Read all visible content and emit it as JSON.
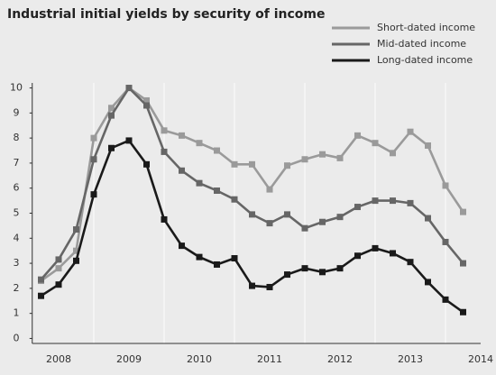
{
  "chart_data": {
    "type": "line",
    "title": "Industrial initial yields by security of income",
    "x": [
      2008.25,
      2008.5,
      2008.75,
      2009,
      2009.25,
      2009.5,
      2009.75,
      2010,
      2010.25,
      2010.5,
      2010.75,
      2011,
      2011.25,
      2011.5,
      2011.75,
      2012,
      2012.25,
      2012.5,
      2012.75,
      2013,
      2013.25,
      2013.5,
      2013.75,
      2014,
      2014.25
    ],
    "series": [
      {
        "name": "Short-dated income",
        "color": "#9a9a9a",
        "values": [
          2.3,
          2.8,
          3.5,
          8.0,
          9.2,
          10.0,
          9.5,
          8.3,
          8.1,
          7.8,
          7.5,
          6.95,
          6.95,
          5.95,
          6.9,
          7.15,
          7.35,
          7.2,
          8.1,
          7.8,
          7.4,
          8.25,
          7.7,
          6.1,
          5.05
        ]
      },
      {
        "name": "Mid-dated income",
        "color": "#666666",
        "values": [
          2.35,
          3.15,
          4.35,
          7.15,
          8.9,
          10.0,
          9.3,
          7.45,
          6.7,
          6.2,
          5.9,
          5.55,
          4.95,
          4.6,
          4.95,
          4.4,
          4.65,
          4.85,
          5.25,
          5.5,
          5.5,
          5.4,
          4.8,
          3.85,
          3.0
        ]
      },
      {
        "name": "Long-dated income",
        "color": "#1a1a1a",
        "values": [
          1.7,
          2.15,
          3.1,
          5.75,
          7.6,
          7.9,
          6.95,
          4.75,
          3.7,
          3.25,
          2.95,
          3.2,
          2.1,
          2.05,
          2.55,
          2.8,
          2.65,
          2.8,
          3.3,
          3.6,
          3.4,
          3.05,
          2.25,
          1.55,
          1.05
        ]
      }
    ],
    "xlim": [
      2008.125,
      2014.5
    ],
    "xticks": [
      {
        "value": 2008.5,
        "label": "2008"
      },
      {
        "value": 2009.5,
        "label": "2009"
      },
      {
        "value": 2010.5,
        "label": "2010"
      },
      {
        "value": 2011.5,
        "label": "2011"
      },
      {
        "value": 2012.5,
        "label": "2012"
      },
      {
        "value": 2013.5,
        "label": "2013"
      },
      {
        "value": 2014.5,
        "label": "2014"
      }
    ],
    "ylim": [
      -0.2,
      10.2
    ],
    "yticks": [
      0,
      1,
      2,
      3,
      4,
      5,
      6,
      7,
      8,
      9,
      10
    ],
    "legend": "top-right"
  }
}
